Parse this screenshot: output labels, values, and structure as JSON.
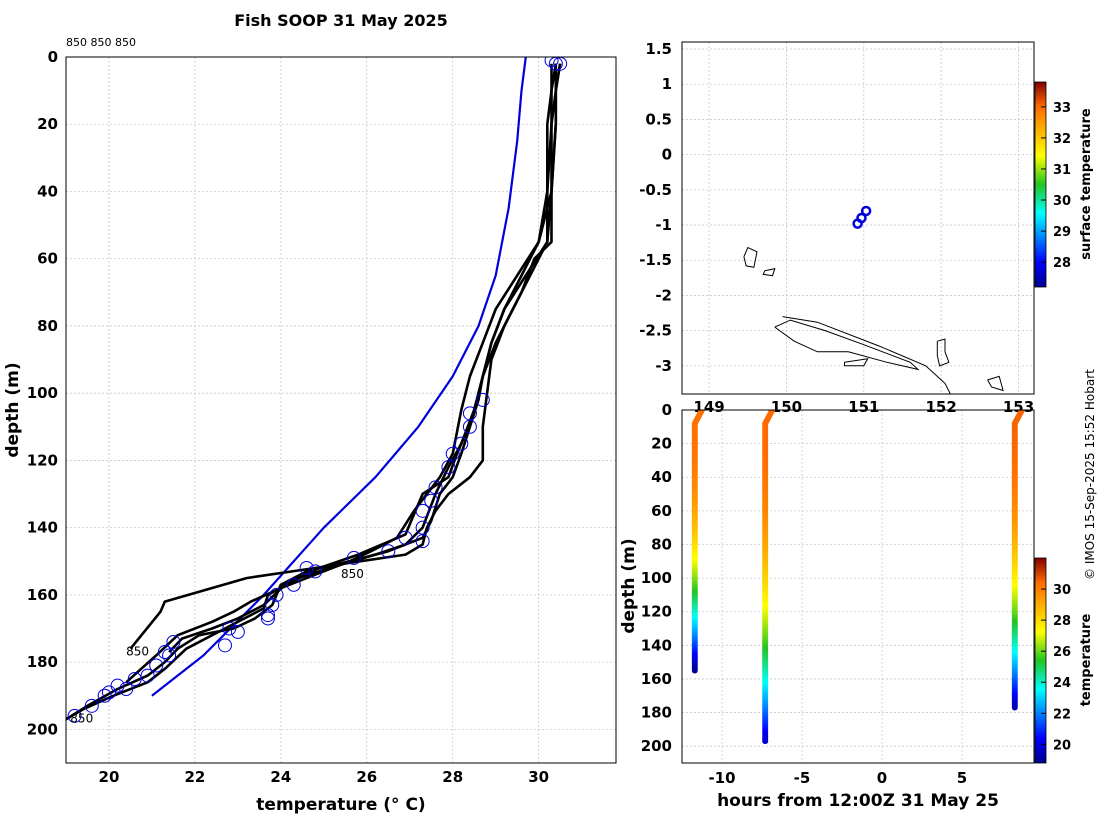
{
  "title": "Fish SOOP 31 May 2025",
  "credit": "© IMOS 15-Sep-2025 15:52 Hobart",
  "chart_data": [
    {
      "type": "line",
      "panel": "profiles",
      "title": "Fish SOOP 31 May 2025",
      "xlabel": "temperature (° C)",
      "ylabel": "depth (m)",
      "xlim": [
        19,
        31.8
      ],
      "ylim": [
        210,
        0
      ],
      "xticks": [
        20,
        22,
        24,
        26,
        28,
        30
      ],
      "yticks": [
        0,
        20,
        40,
        60,
        80,
        100,
        120,
        140,
        160,
        180,
        200
      ],
      "top_labels": "850 850 850",
      "profile_labels": [
        {
          "text": "850",
          "x": 20.4,
          "y": 178
        },
        {
          "text": "850",
          "x": 25.4,
          "y": 155
        },
        {
          "text": "850",
          "x": 19.1,
          "y": 198
        }
      ],
      "series": [
        {
          "name": "climatology",
          "color": "#0000dd",
          "x": [
            29.7,
            29.6,
            29.5,
            29.3,
            29.0,
            28.6,
            28.0,
            27.2,
            26.2,
            25.0,
            23.6,
            22.2,
            21.0
          ],
          "y": [
            0,
            10,
            25,
            45,
            65,
            80,
            95,
            110,
            125,
            140,
            160,
            178,
            190
          ]
        },
        {
          "name": "profile-1",
          "color": "#000000",
          "x": [
            30.4,
            30.4,
            30.3,
            30.3,
            30.3,
            29.9,
            29.6,
            29.2,
            28.9,
            28.8,
            28.7,
            28.7,
            28.4,
            28.1,
            27.9,
            27.6,
            27.4,
            27.3,
            26.9,
            24.8,
            23.2,
            21.3,
            21.2,
            20.5
          ],
          "y": [
            2,
            10,
            20,
            40,
            55,
            60,
            70,
            80,
            90,
            100,
            110,
            120,
            125,
            128,
            130,
            135,
            140,
            145,
            148,
            152,
            155,
            162,
            165,
            176
          ]
        },
        {
          "name": "profile-2",
          "color": "#000000",
          "x": [
            30.5,
            30.4,
            30.4,
            30.3,
            30.0,
            29.6,
            29.2,
            28.9,
            28.7,
            28.5,
            28.3,
            28.1,
            27.9,
            27.3,
            26.9,
            25.8,
            24.9,
            24.1,
            23.6,
            23.0,
            22.4,
            21.7,
            21.4
          ],
          "y": [
            2,
            10,
            20,
            40,
            55,
            65,
            75,
            85,
            95,
            105,
            112,
            118,
            125,
            130,
            142,
            148,
            152,
            157,
            163,
            167,
            170,
            173,
            177
          ]
        },
        {
          "name": "profile-3",
          "color": "#000000",
          "x": [
            30.5,
            30.4,
            30.4,
            30.3,
            30.2,
            29.7,
            29.2,
            28.9,
            28.7,
            28.6,
            28.4,
            28.2,
            28.0,
            27.7,
            27.5,
            27.3,
            26.5,
            25.6,
            24.6,
            24.0,
            23.8,
            23.4,
            22.9,
            22.1,
            21.6,
            21.3,
            20.9,
            20.2,
            19.5,
            19.0
          ],
          "y": [
            2,
            10,
            20,
            40,
            55,
            65,
            75,
            85,
            95,
            102,
            110,
            118,
            125,
            130,
            138,
            143,
            147,
            150,
            153,
            157,
            163,
            167,
            170,
            172,
            176,
            180,
            184,
            188,
            193,
            197
          ]
        },
        {
          "name": "profile-4",
          "color": "#000000",
          "x": [
            30.4,
            30.3,
            30.3,
            30.2,
            30.2,
            29.8,
            29.4,
            29.0,
            28.7,
            28.5,
            28.2,
            27.9,
            27.6,
            27.3,
            26.9,
            26.2,
            25.4,
            24.4,
            23.7,
            23.6,
            22.7,
            21.8,
            21.3,
            20.9,
            20.1,
            19.4,
            19.0
          ],
          "y": [
            2,
            10,
            20,
            40,
            55,
            65,
            75,
            85,
            95,
            105,
            115,
            122,
            130,
            140,
            145,
            148,
            151,
            155,
            160,
            164,
            170,
            176,
            182,
            186,
            190,
            194,
            197
          ]
        },
        {
          "name": "profile-5",
          "color": "#000000",
          "x": [
            30.3,
            30.3,
            30.2,
            30.2,
            30.0,
            29.5,
            29.0,
            28.7,
            28.4,
            28.2,
            28.0,
            27.7,
            27.1,
            26.7,
            26.1,
            25.6,
            24.8,
            24.0,
            23.3,
            22.9,
            22.4,
            21.6,
            21.1,
            20.4
          ],
          "y": [
            2,
            10,
            20,
            40,
            55,
            65,
            75,
            85,
            95,
            105,
            118,
            125,
            135,
            143,
            147,
            150,
            154,
            158,
            162,
            165,
            168,
            172,
            178,
            186
          ]
        }
      ],
      "markers": {
        "color": "#0000dd",
        "x": [
          30.3,
          30.5,
          30.4,
          28.7,
          28.4,
          28.4,
          28.2,
          28.0,
          27.9,
          27.6,
          27.5,
          27.3,
          27.3,
          27.3,
          26.9,
          26.5,
          25.7,
          24.8,
          24.6,
          24.3,
          23.9,
          23.8,
          23.7,
          23.7,
          23.0,
          22.8,
          22.7,
          21.5,
          21.4,
          21.3,
          21.1,
          20.9,
          20.6,
          20.4,
          20.2,
          20.0,
          19.9,
          19.6,
          19.2
        ],
        "y": [
          1,
          2,
          2,
          102,
          106,
          110,
          115,
          118,
          122,
          128,
          132,
          135,
          140,
          144,
          143,
          147,
          149,
          153,
          152,
          157,
          160,
          163,
          166,
          167,
          171,
          170,
          175,
          174,
          178,
          177,
          181,
          184,
          185,
          188,
          187,
          189,
          190,
          193,
          196
        ]
      }
    },
    {
      "type": "scatter",
      "panel": "map",
      "xlim": [
        148.65,
        153.2
      ],
      "ylim": [
        -3.4,
        1.6
      ],
      "yticks": [
        "1.5",
        "1",
        "0.5",
        "0",
        "-0.5",
        "-1",
        "-1.5",
        "-2",
        "-2.5",
        "-3"
      ],
      "xticks": [
        "149",
        "150",
        "151",
        "152",
        "153"
      ],
      "points": {
        "lon": [
          150.92,
          150.97,
          151.03
        ],
        "lat": [
          -0.98,
          -0.9,
          -0.8
        ],
        "color": "#0000dd"
      },
      "coast_lon_lat": [
        [
          [
            149.45,
            -1.45
          ],
          [
            149.5,
            -1.32
          ],
          [
            149.62,
            -1.38
          ],
          [
            149.58,
            -1.6
          ],
          [
            149.48,
            -1.58
          ],
          [
            149.45,
            -1.45
          ]
        ],
        [
          [
            149.72,
            -1.65
          ],
          [
            149.85,
            -1.62
          ],
          [
            149.82,
            -1.72
          ],
          [
            149.7,
            -1.7
          ],
          [
            149.72,
            -1.65
          ]
        ],
        [
          [
            149.85,
            -2.45
          ],
          [
            150.05,
            -2.35
          ],
          [
            150.5,
            -2.5
          ],
          [
            151.0,
            -2.7
          ],
          [
            151.6,
            -2.95
          ],
          [
            151.7,
            -3.05
          ],
          [
            151.3,
            -2.95
          ],
          [
            150.8,
            -2.8
          ],
          [
            150.4,
            -2.8
          ],
          [
            150.1,
            -2.65
          ],
          [
            149.85,
            -2.45
          ]
        ],
        [
          [
            149.95,
            -2.3
          ],
          [
            150.4,
            -2.38
          ],
          [
            151.2,
            -2.72
          ],
          [
            151.8,
            -3.0
          ],
          [
            152.05,
            -3.25
          ],
          [
            152.12,
            -3.4
          ]
        ],
        [
          [
            150.75,
            -2.95
          ],
          [
            151.05,
            -2.9
          ],
          [
            151.0,
            -3.0
          ],
          [
            150.75,
            -3.0
          ],
          [
            150.75,
            -2.95
          ]
        ],
        [
          [
            151.95,
            -2.65
          ],
          [
            152.05,
            -2.62
          ],
          [
            152.05,
            -2.8
          ],
          [
            152.1,
            -2.95
          ],
          [
            151.98,
            -3.0
          ],
          [
            151.95,
            -2.85
          ],
          [
            151.95,
            -2.65
          ]
        ],
        [
          [
            152.6,
            -3.2
          ],
          [
            152.75,
            -3.15
          ],
          [
            152.8,
            -3.35
          ],
          [
            152.65,
            -3.3
          ],
          [
            152.6,
            -3.2
          ]
        ]
      ],
      "colorbar": {
        "label": "surface temperature",
        "ticks": [
          "28",
          "29",
          "30",
          "31",
          "32",
          "33"
        ],
        "range": [
          27.2,
          33.8
        ]
      }
    },
    {
      "type": "scatter",
      "panel": "timeline",
      "xlabel": "hours from 12:00Z 31 May 25",
      "ylabel": "depth (m)",
      "xlim": [
        -12.5,
        9.5
      ],
      "ylim": [
        210,
        0
      ],
      "xticks": [
        "-10",
        "-5",
        "0",
        "5"
      ],
      "yticks": [
        "0",
        "20",
        "40",
        "60",
        "80",
        "100",
        "120",
        "140",
        "160",
        "180",
        "200"
      ],
      "casts": [
        {
          "hours": -11.7,
          "max_depth": 155,
          "surface_temp": 30.3
        },
        {
          "hours": -7.3,
          "max_depth": 197,
          "surface_temp": 30.4
        },
        {
          "hours": 8.3,
          "max_depth": 177,
          "surface_temp": 30.5
        }
      ],
      "colorbar": {
        "label": "temperature",
        "ticks": [
          "20",
          "22",
          "24",
          "26",
          "28",
          "30"
        ],
        "range": [
          18.8,
          32.0
        ]
      }
    }
  ]
}
